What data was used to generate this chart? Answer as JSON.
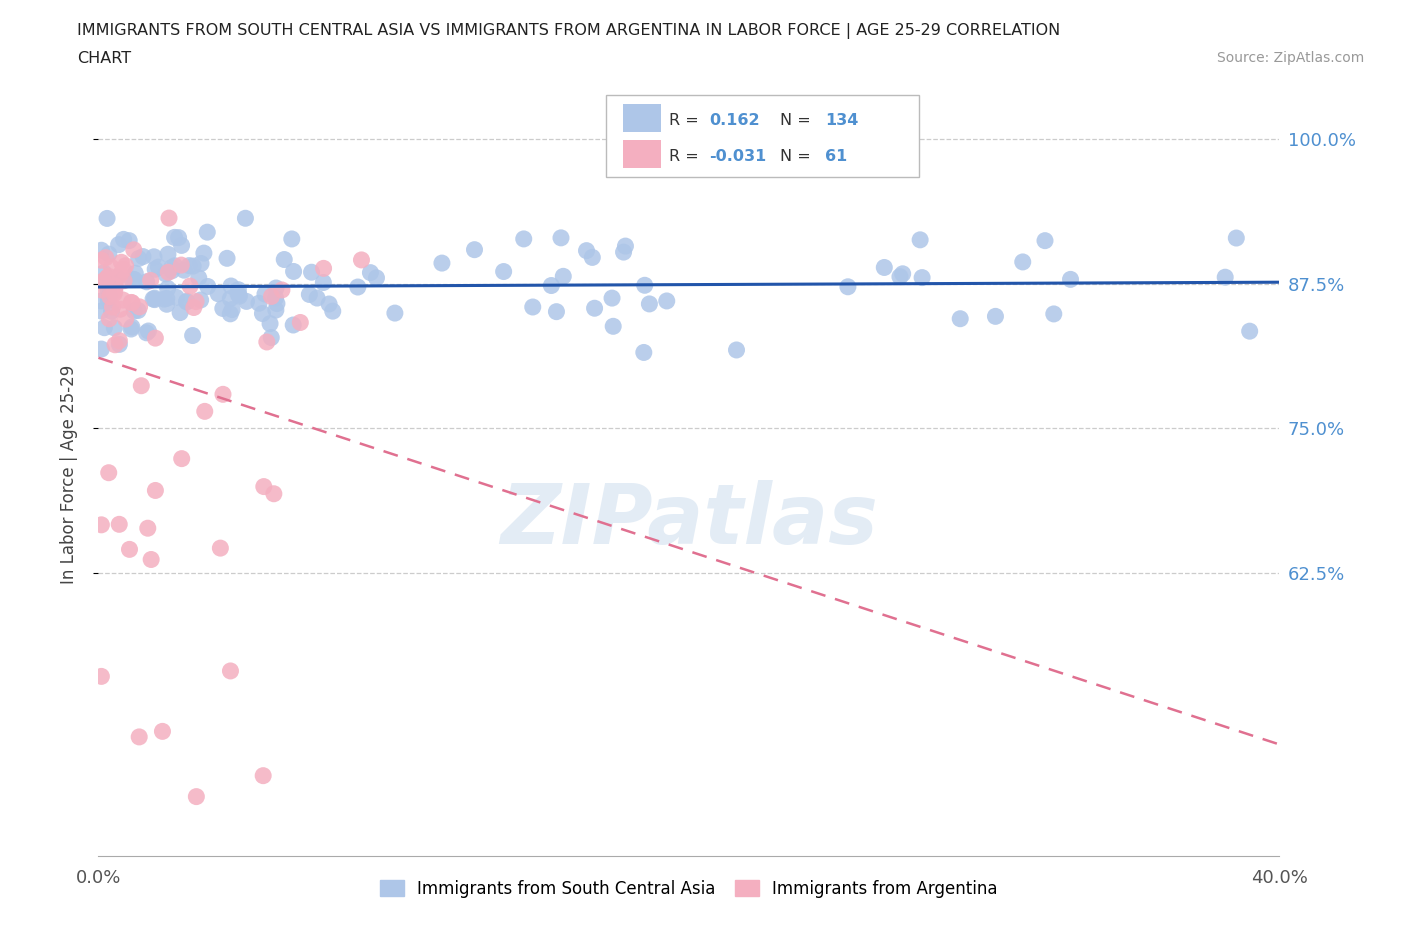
{
  "title_line1": "IMMIGRANTS FROM SOUTH CENTRAL ASIA VS IMMIGRANTS FROM ARGENTINA IN LABOR FORCE | AGE 25-29 CORRELATION",
  "title_line2": "CHART",
  "source_text": "Source: ZipAtlas.com",
  "R_blue": 0.162,
  "N_blue": 134,
  "R_pink": -0.031,
  "N_pink": 61,
  "color_blue": "#aec6e8",
  "color_pink": "#f4afc0",
  "line_blue": "#2255aa",
  "line_pink": "#e07090",
  "ylabel": "In Labor Force | Age 25-29",
  "xmin": 0.0,
  "xmax": 0.4,
  "ymin": 0.38,
  "ymax": 1.04,
  "yticks": [
    0.625,
    0.75,
    0.875,
    1.0
  ],
  "ytick_labels": [
    "62.5%",
    "75.0%",
    "87.5%",
    "100.0%"
  ],
  "xticks": [
    0.0,
    0.08,
    0.16,
    0.24,
    0.32,
    0.4
  ],
  "xtick_labels": [
    "0.0%",
    "",
    "",
    "",
    "",
    "40.0%"
  ],
  "watermark": "ZIPatlas",
  "legend_label_blue": "Immigrants from South Central Asia",
  "legend_label_pink": "Immigrants from Argentina"
}
